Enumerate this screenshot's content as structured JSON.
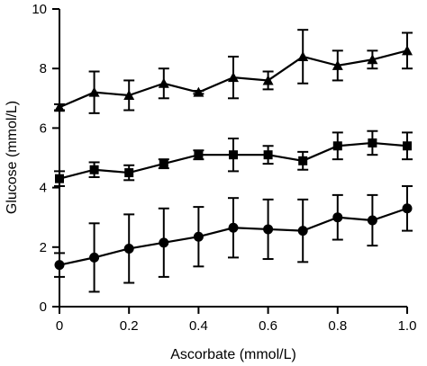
{
  "chart_data": {
    "type": "line",
    "xlabel": "Ascorbate (mmol/L)",
    "ylabel": "Glucose (mmol/L)",
    "xlim": [
      0,
      1.0
    ],
    "ylim": [
      0,
      10
    ],
    "x_ticks": [
      "0",
      "0.2",
      "0.4",
      "0.6",
      "0.8",
      "1.0"
    ],
    "y_ticks": [
      "0",
      "2",
      "4",
      "6",
      "8",
      "10"
    ],
    "grid": false,
    "legend": "none",
    "x": [
      0,
      0.1,
      0.2,
      0.3,
      0.4,
      0.5,
      0.6,
      0.7,
      0.8,
      0.9,
      1.0
    ],
    "series": [
      {
        "marker": "triangle",
        "values": [
          6.7,
          7.2,
          7.1,
          7.5,
          7.2,
          7.7,
          7.6,
          8.4,
          8.1,
          8.3,
          8.6
        ],
        "err": [
          0.1,
          0.7,
          0.5,
          0.5,
          0.05,
          0.7,
          0.3,
          0.9,
          0.5,
          0.3,
          0.6
        ]
      },
      {
        "marker": "square",
        "values": [
          4.3,
          4.6,
          4.5,
          4.8,
          5.1,
          5.1,
          5.1,
          4.9,
          5.4,
          5.5,
          5.4
        ],
        "err": [
          0.25,
          0.25,
          0.25,
          0.15,
          0.15,
          0.55,
          0.3,
          0.3,
          0.45,
          0.4,
          0.45
        ]
      },
      {
        "marker": "circle",
        "values": [
          1.4,
          1.65,
          1.95,
          2.15,
          2.35,
          2.65,
          2.6,
          2.55,
          3.0,
          2.9,
          3.3
        ],
        "err": [
          0.4,
          1.15,
          1.15,
          1.15,
          1.0,
          1.0,
          1.0,
          1.05,
          0.75,
          0.85,
          0.75
        ]
      }
    ]
  }
}
